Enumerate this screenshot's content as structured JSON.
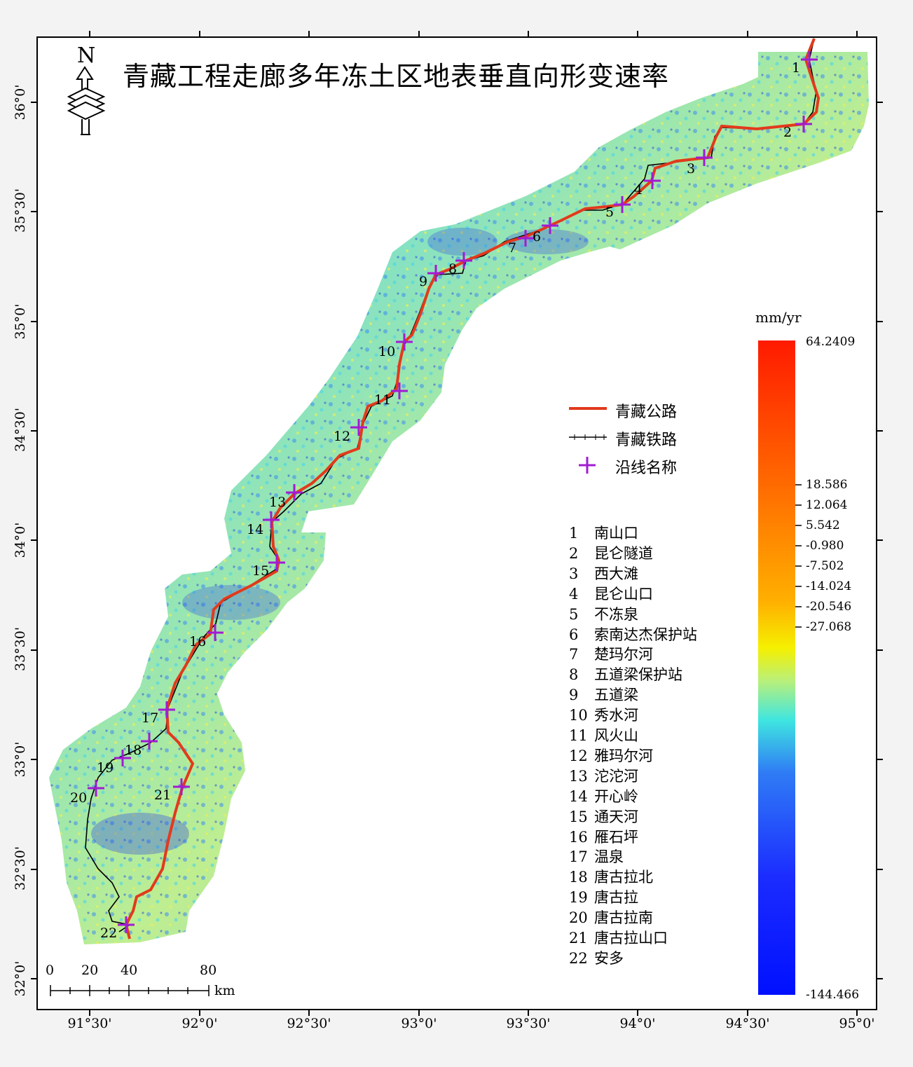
{
  "title": "青藏工程走廊多年冻土区地表垂直向形变速率",
  "north_label": "N",
  "colorbar": {
    "unit": "mm/yr",
    "max": "64.2409",
    "min": "-144.466",
    "ticks": [
      "18.586",
      "12.064",
      "5.542",
      "-0.980",
      "-7.502",
      "-14.024",
      "-20.546",
      "-27.068"
    ]
  },
  "legend": {
    "highway": "青藏公路",
    "railway": "青藏铁路",
    "stations": "沿线名称",
    "highway_color": "#e23a1c",
    "railway_color": "#000000",
    "marker_color": "#a21bd3"
  },
  "stations": [
    {
      "n": "1",
      "name": "南山口"
    },
    {
      "n": "2",
      "name": "昆仑隧道"
    },
    {
      "n": "3",
      "name": "西大滩"
    },
    {
      "n": "4",
      "name": "昆仑山口"
    },
    {
      "n": "5",
      "name": "不冻泉"
    },
    {
      "n": "6",
      "name": "索南达杰保护站"
    },
    {
      "n": "7",
      "name": "楚玛尔河"
    },
    {
      "n": "8",
      "name": "五道梁保护站"
    },
    {
      "n": "9",
      "name": "五道梁"
    },
    {
      "n": "10",
      "name": "秀水河"
    },
    {
      "n": "11",
      "name": "风火山"
    },
    {
      "n": "12",
      "name": "雅玛尔河"
    },
    {
      "n": "13",
      "name": "沱沱河"
    },
    {
      "n": "14",
      "name": "开心岭"
    },
    {
      "n": "15",
      "name": "通天河"
    },
    {
      "n": "16",
      "name": "雁石坪"
    },
    {
      "n": "17",
      "name": "温泉"
    },
    {
      "n": "18",
      "name": "唐古拉北"
    },
    {
      "n": "19",
      "name": "唐古拉"
    },
    {
      "n": "20",
      "name": "唐古拉南"
    },
    {
      "n": "21",
      "name": "唐古拉山口"
    },
    {
      "n": "22",
      "name": "安多"
    }
  ],
  "lat_ticks": [
    "36°0'",
    "35°30'",
    "35°0'",
    "34°30'",
    "34°0'",
    "33°30'",
    "33°0'",
    "32°30'",
    "32°0'"
  ],
  "lon_ticks": [
    "91°30'",
    "92°0'",
    "92°30'",
    "93°0'",
    "93°30'",
    "94°0'",
    "94°30'",
    "95°0'"
  ],
  "scalebar": {
    "labels": [
      "0",
      "20",
      "40",
      "80"
    ],
    "unit": "km"
  }
}
